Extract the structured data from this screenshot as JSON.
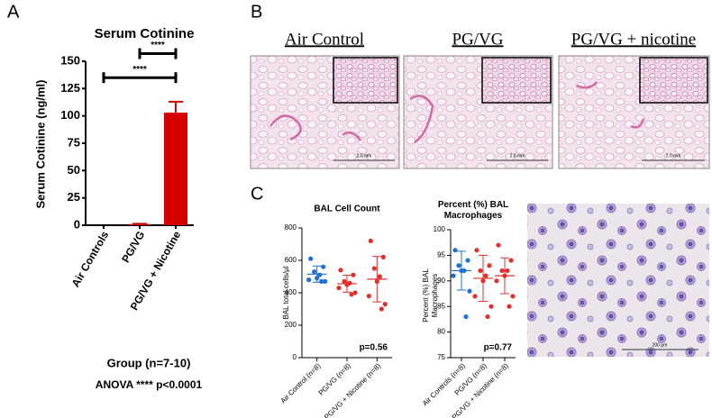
{
  "panel_labels": [
    "A",
    "B",
    "C"
  ],
  "histology": {
    "panels": [
      {
        "title": "Air Control",
        "scale": "2.0 mm"
      },
      {
        "title": "PG/VG",
        "scale": "2.0 mm"
      },
      {
        "title": "PG/VG + nicotine",
        "scale": "2.0 mm"
      }
    ]
  },
  "cytology": {
    "scale": "200 µm"
  },
  "chart_data": [
    {
      "type": "bar",
      "title": "Serum Cotinine",
      "ylabel": "Serum Cotinine (ng/ml)",
      "xlabel": "Group (n=7-10)",
      "note": "ANOVA **** p<0.0001",
      "categories": [
        "Air Controls",
        "PG/VG",
        "PG/VG + Nicotine"
      ],
      "values": [
        0,
        1,
        103
      ],
      "errors": [
        0,
        0.3,
        10
      ],
      "color": "#d40000",
      "ylim": [
        0,
        150
      ],
      "yticks": [
        0,
        25,
        50,
        75,
        100,
        125,
        150
      ],
      "annotations": [
        {
          "text": "****",
          "between": [
            "PG/VG",
            "PG/VG + Nicotine"
          ],
          "y": 157
        },
        {
          "text": "****",
          "between": [
            "Air Controls",
            "PG/VG + Nicotine"
          ],
          "y": 135
        }
      ]
    },
    {
      "type": "dot",
      "title": "BAL Cell Count",
      "ylabel": "BAL total cells/µl",
      "note": "p=0.56",
      "categories": [
        "Air Control (n=8)",
        "PG/VG (n=8)",
        "PG/VG + Nicotine (n=8)"
      ],
      "groups": [
        {
          "color": "#1f6fd6",
          "values": [
            610,
            560,
            530,
            510,
            490,
            480,
            470,
            470
          ],
          "mean": 515,
          "sd": 50
        },
        {
          "color": "#e0302c",
          "values": [
            540,
            510,
            470,
            460,
            450,
            430,
            400,
            390
          ],
          "mean": 456,
          "sd": 52
        },
        {
          "color": "#e0302c",
          "values": [
            720,
            620,
            550,
            500,
            470,
            380,
            330,
            300
          ],
          "mean": 484,
          "sd": 140
        }
      ],
      "ylim": [
        0,
        800
      ],
      "yticks": [
        0,
        200,
        400,
        600,
        800
      ]
    },
    {
      "type": "dot",
      "title": "Percent (%) BAL Macrophages",
      "ylabel": "Percent (%) BAL Macrophages",
      "note": "p=0.77",
      "categories": [
        "Air Controls (n=8)",
        "PG/VG (n=8)",
        "PG/VG + Nicotine (n=8)"
      ],
      "groups": [
        {
          "color": "#1f6fd6",
          "values": [
            96,
            94,
            93,
            92,
            92,
            91,
            88,
            83
          ],
          "mean": 92,
          "sd": 3.8
        },
        {
          "color": "#e0302c",
          "values": [
            96,
            93,
            92,
            91,
            90,
            87,
            85,
            83
          ],
          "mean": 90.5,
          "sd": 4.5
        },
        {
          "color": "#e0302c",
          "values": [
            97,
            94,
            92,
            92,
            91,
            90,
            87,
            85
          ],
          "mean": 91,
          "sd": 3.5
        }
      ],
      "ylim": [
        75,
        100
      ],
      "yticks": [
        75,
        80,
        85,
        90,
        95,
        100
      ]
    }
  ]
}
